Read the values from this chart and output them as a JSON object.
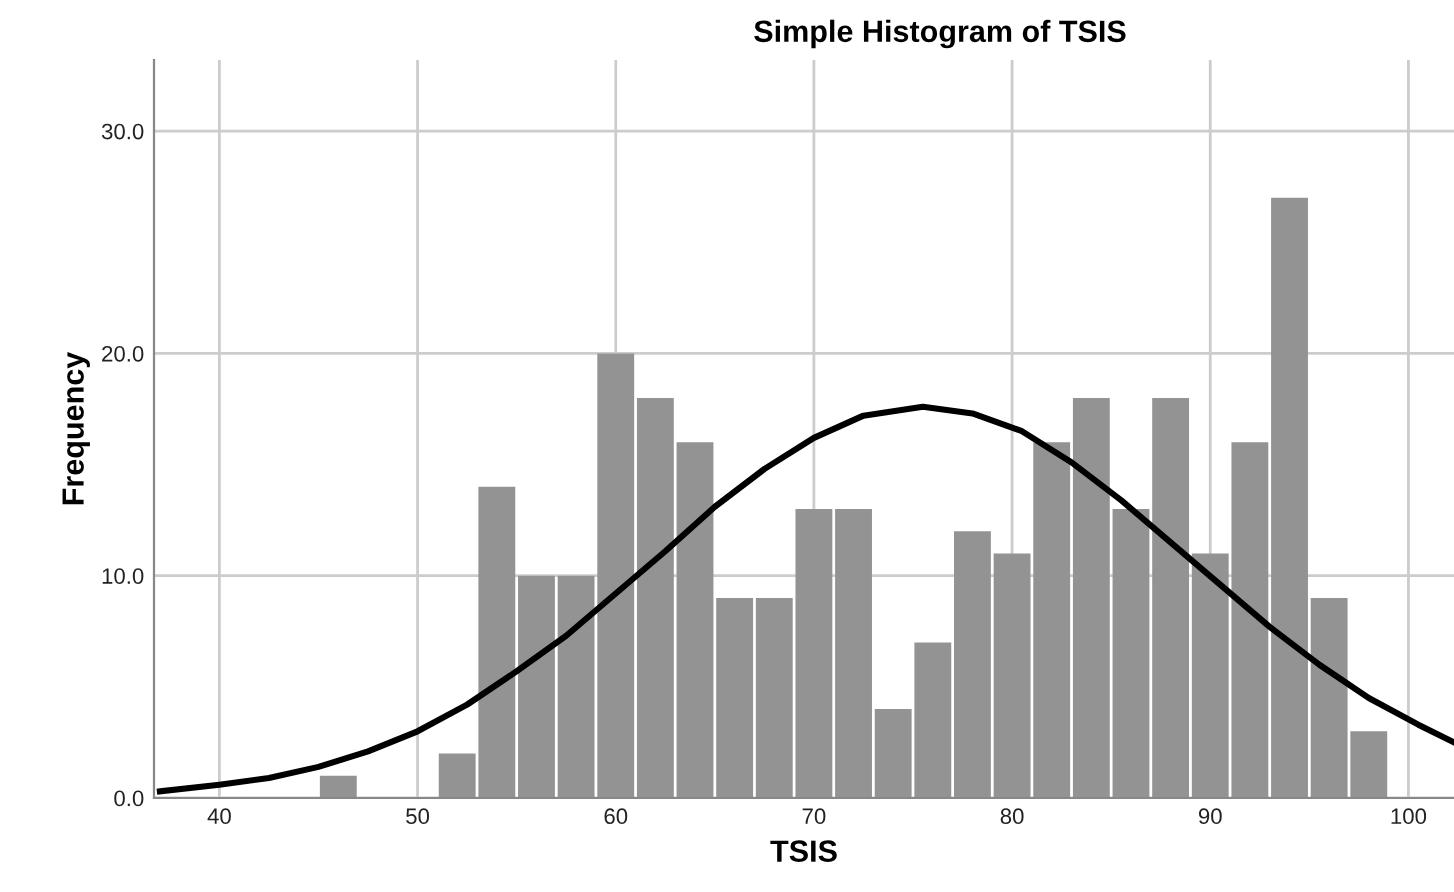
{
  "chart_data": {
    "type": "histogram",
    "title": "Simple Histogram of TSIS",
    "xlabel": "TSIS",
    "ylabel": "Frequency",
    "bins": [
      45,
      47,
      49,
      51,
      53,
      55,
      57,
      59,
      61,
      63,
      65,
      67,
      69,
      71,
      73,
      75,
      77,
      79,
      81,
      83,
      85,
      87,
      89,
      91,
      93,
      95,
      97,
      99
    ],
    "values": [
      1,
      0,
      0,
      2,
      14,
      10,
      10,
      20,
      18,
      16,
      9,
      9,
      13,
      13,
      4,
      7,
      12,
      11,
      16,
      18,
      13,
      18,
      11,
      16,
      27,
      9,
      3
    ],
    "color": "#939393",
    "series": [
      {
        "type": "line",
        "color": "#000000",
        "x": [
          37,
          40,
          42.5,
          45,
          47.5,
          50,
          52.5,
          55,
          57.5,
          60,
          62.5,
          65,
          67.5,
          70,
          72.5,
          75.5,
          78,
          80.5,
          83,
          85.5,
          88,
          90.5,
          93,
          95.5,
          98,
          100.5,
          102.3
        ],
        "values": [
          0.3,
          0.6,
          0.9,
          1.4,
          2.1,
          3.0,
          4.2,
          5.7,
          7.3,
          9.2,
          11.1,
          13.1,
          14.8,
          16.2,
          17.2,
          17.6,
          17.3,
          16.5,
          15.1,
          13.4,
          11.5,
          9.6,
          7.7,
          6.0,
          4.5,
          3.3,
          2.5
        ]
      }
    ],
    "xlim": [
      36.7,
      102.3
    ],
    "ylim": [
      0,
      33.2
    ],
    "xticks": [
      40,
      50,
      60,
      70,
      80,
      90,
      100
    ],
    "yticks": [
      {
        "value": 0,
        "label": "0.0"
      },
      {
        "value": 10,
        "label": "10.0"
      },
      {
        "value": 20,
        "label": "20.0"
      },
      {
        "value": 30,
        "label": "30.0"
      }
    ],
    "grid": true,
    "marker": "none",
    "line_style": "solid"
  }
}
